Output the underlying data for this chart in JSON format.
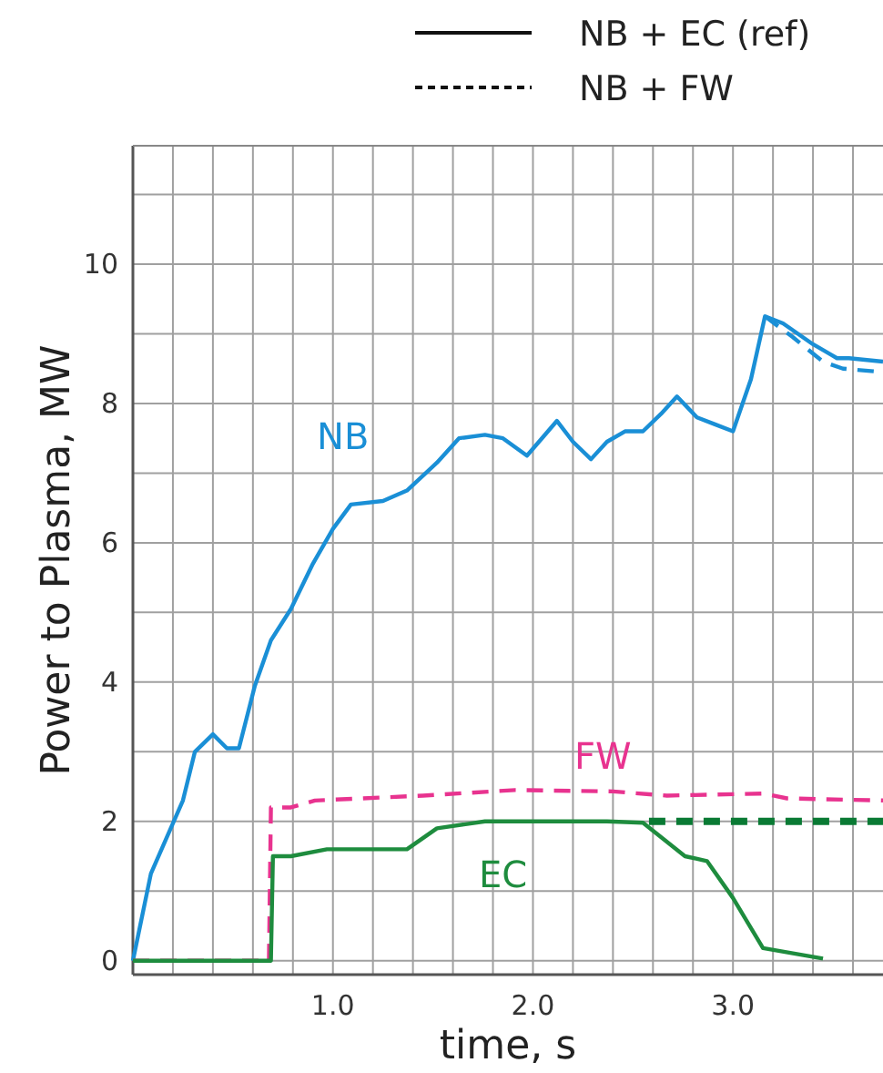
{
  "chart_data": {
    "type": "line",
    "xlabel": "time, s",
    "ylabel": "Power to Plasma, MW",
    "xlim": [
      0,
      3.75
    ],
    "ylim": [
      -0.2,
      11.7
    ],
    "xticks": [
      {
        "value": 0.2,
        "label": null
      },
      {
        "value": 0.4,
        "label": null
      },
      {
        "value": 0.6,
        "label": null
      },
      {
        "value": 0.8,
        "label": null
      },
      {
        "value": 1.0,
        "label": "1.0"
      },
      {
        "value": 1.2,
        "label": null
      },
      {
        "value": 1.4,
        "label": null
      },
      {
        "value": 1.6,
        "label": null
      },
      {
        "value": 1.8,
        "label": null
      },
      {
        "value": 2.0,
        "label": "2.0"
      },
      {
        "value": 2.2,
        "label": null
      },
      {
        "value": 2.4,
        "label": null
      },
      {
        "value": 2.6,
        "label": null
      },
      {
        "value": 2.8,
        "label": null
      },
      {
        "value": 3.0,
        "label": "3.0"
      },
      {
        "value": 3.2,
        "label": null
      },
      {
        "value": 3.4,
        "label": null
      },
      {
        "value": 3.6,
        "label": null
      }
    ],
    "yticks": [
      0,
      {
        "value": 1,
        "label": null
      },
      2,
      {
        "value": 3,
        "label": null
      },
      4,
      {
        "value": 5,
        "label": null
      },
      6,
      {
        "value": 7,
        "label": null
      },
      8,
      {
        "value": 9,
        "label": null
      },
      10,
      {
        "value": 11,
        "label": null
      }
    ],
    "grid": true,
    "marker": "none",
    "annotations": [
      "NB + EC (ref)",
      "NB + FW"
    ],
    "series": [
      {
        "name": "NB",
        "color": "#1a8fd6",
        "line_style": "solid",
        "x": [
          0,
          0.09,
          0.25,
          0.31,
          0.4,
          0.47,
          0.53,
          0.61,
          0.69,
          0.79,
          0.9,
          1.0,
          1.09,
          1.25,
          1.37,
          1.52,
          1.63,
          1.76,
          1.85,
          1.97,
          2.03,
          2.12,
          2.2,
          2.29,
          2.37,
          2.46,
          2.55,
          2.64,
          2.72,
          2.82,
          2.91,
          3.0,
          3.09,
          3.16,
          3.25,
          3.4,
          3.49,
          3.52,
          3.58,
          3.75
        ],
        "values": [
          0,
          1.25,
          2.3,
          3.0,
          3.25,
          3.05,
          3.05,
          3.95,
          4.6,
          5.05,
          5.7,
          6.2,
          6.55,
          6.6,
          6.75,
          7.15,
          7.5,
          7.55,
          7.5,
          7.25,
          7.45,
          7.75,
          7.45,
          7.2,
          7.45,
          7.6,
          7.6,
          7.85,
          8.1,
          7.8,
          7.7,
          7.6,
          8.35,
          9.25,
          9.15,
          8.85,
          8.7,
          8.65,
          8.65,
          8.6
        ]
      },
      {
        "color": "#1a8fd6",
        "line_style": "dashed",
        "x": [
          3.16,
          3.3,
          3.45,
          3.55,
          3.75
        ],
        "values": [
          9.25,
          8.95,
          8.6,
          8.5,
          8.45
        ]
      },
      {
        "name": "FW",
        "color": "#e8338f",
        "line_style": "dashed",
        "x": [
          0,
          0.68,
          0.69,
          0.79,
          0.91,
          1.45,
          1.91,
          2.4,
          2.67,
          3.15,
          3.27,
          3.75
        ],
        "values": [
          0,
          0,
          2.2,
          2.2,
          2.3,
          2.37,
          2.45,
          2.43,
          2.37,
          2.4,
          2.33,
          2.3
        ]
      },
      {
        "name": "EC",
        "color": "#1e8c3e",
        "line_style": "solid",
        "x": [
          0,
          0.69,
          0.7,
          0.79,
          0.97,
          1.37,
          1.52,
          1.76,
          2.37,
          2.55,
          2.76,
          2.87,
          3.0,
          3.15,
          3.45
        ],
        "values": [
          0,
          0,
          1.5,
          1.5,
          1.6,
          1.6,
          1.9,
          2.0,
          2.0,
          1.98,
          1.5,
          1.43,
          0.9,
          0.18,
          0.03
        ]
      },
      {
        "color": "#0a7a34",
        "line_style": "dashed",
        "x": [
          2.58,
          3.75
        ],
        "values": [
          2.0,
          2.0
        ]
      }
    ]
  }
}
